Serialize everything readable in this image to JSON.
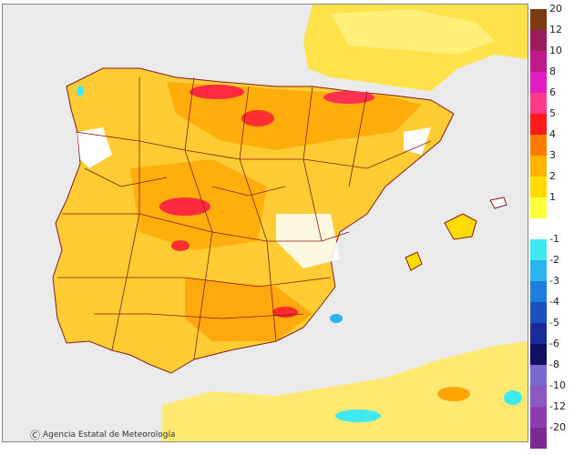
{
  "credit": {
    "symbol": "Ⓒ",
    "text": "Agencia Estatal de Meteorología"
  },
  "legend": {
    "warm": [
      {
        "label": "20",
        "color": "#7a3a12"
      },
      {
        "label": "12",
        "color": "#9a1c5a"
      },
      {
        "label": "10",
        "color": "#c0188a"
      },
      {
        "label": "8",
        "color": "#e21cc0"
      },
      {
        "label": "6",
        "color": "#ff3a8a"
      },
      {
        "label": "5",
        "color": "#ff1a1a"
      },
      {
        "label": "4",
        "color": "#ff7a00"
      },
      {
        "label": "3",
        "color": "#ffb400"
      },
      {
        "label": "2",
        "color": "#ffdc00"
      },
      {
        "label": "1",
        "color": "#ffff3a"
      }
    ],
    "neutral": {
      "color": "#ffffff"
    },
    "cold": [
      {
        "label": "-1",
        "color": "#40e8ef"
      },
      {
        "label": "-2",
        "color": "#2ab4f0"
      },
      {
        "label": "-3",
        "color": "#1e7ee0"
      },
      {
        "label": "-4",
        "color": "#1a50c0"
      },
      {
        "label": "-5",
        "color": "#1a2a98"
      },
      {
        "label": "-6",
        "color": "#101060"
      },
      {
        "label": "-8",
        "color": "#7a6ad0"
      },
      {
        "label": "-10",
        "color": "#8a58c0"
      },
      {
        "label": "-12",
        "color": "#8a3eb0"
      },
      {
        "label": "-20",
        "color": "#7a2a90"
      }
    ]
  },
  "map": {
    "sea_color": "#eaeaea",
    "base_color": "#ffd84a",
    "border_color": "#8a1a1a"
  }
}
